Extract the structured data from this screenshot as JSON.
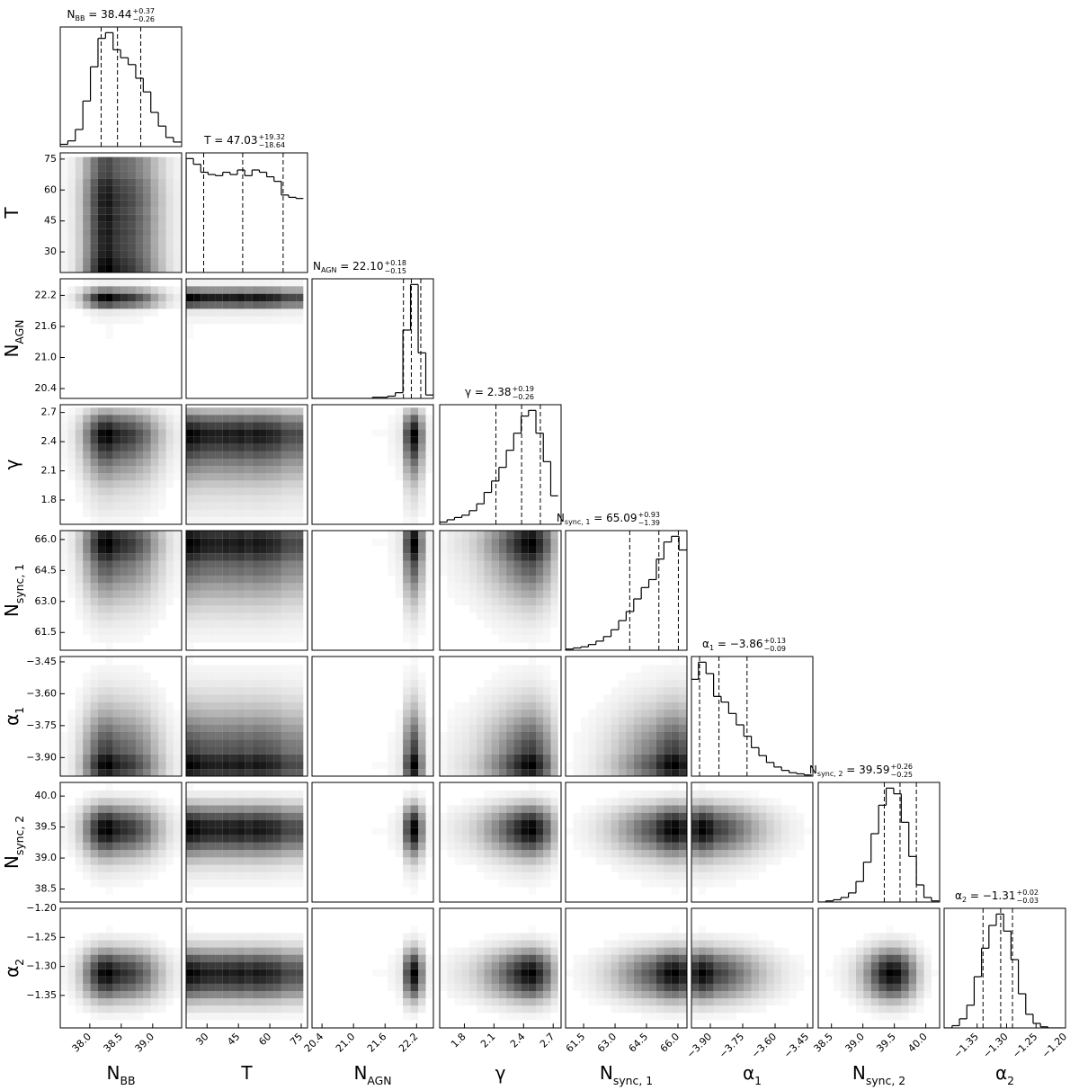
{
  "chart_data": {
    "type": "corner",
    "color": "#000000",
    "params": [
      {
        "name": "N",
        "name_sub": "BB",
        "title_value": " = 38.44",
        "plus": "+0.37",
        "minus": "−0.26",
        "lim": [
          37.53,
          39.46
        ],
        "ticks": [
          {
            "value": 38.0,
            "label": "38.0"
          },
          38.5,
          {
            "value": 39.0,
            "label": "39.0"
          }
        ],
        "quantiles": [
          38.18,
          38.44,
          38.81
        ],
        "hist": {
          "bins": [
            37.53,
            37.65,
            37.77,
            37.89,
            38.01,
            38.13,
            38.25,
            38.37,
            38.49,
            38.61,
            38.73,
            38.85,
            38.97,
            39.09,
            39.21,
            39.33,
            39.45
          ],
          "counts": [
            2,
            5,
            15,
            40,
            70,
            95,
            100,
            85,
            78,
            72,
            60,
            48,
            30,
            18,
            8,
            4
          ]
        }
      },
      {
        "name": "T",
        "name_sub": "",
        "title_value": " = 47.03",
        "plus": "+19.32",
        "minus": "−18.64",
        "lim": [
          20,
          78
        ],
        "ticks": [
          30,
          45,
          60,
          75
        ],
        "quantiles": [
          28.39,
          47.03,
          66.35
        ],
        "hist": {
          "bins": [
            20,
            23.5,
            27,
            30.5,
            34,
            37.5,
            41,
            44.5,
            48,
            51.5,
            55,
            58.5,
            62,
            65.5,
            69,
            72.5,
            76
          ],
          "counts": [
            100,
            95,
            88,
            86,
            85,
            88,
            86,
            90,
            85,
            90,
            88,
            84,
            80,
            68,
            66,
            65
          ]
        }
      },
      {
        "name": "N",
        "name_sub": "AGN",
        "title_value": " = 22.10",
        "plus": "+0.18",
        "minus": "−0.15",
        "lim": [
          20.21,
          22.52
        ],
        "ticks": [
          20.4,
          {
            "value": 21.0,
            "label": "21.0"
          },
          21.6,
          22.2
        ],
        "quantiles": [
          21.95,
          22.1,
          22.28
        ],
        "hist": {
          "bins": [
            20.2,
            20.345,
            20.49,
            20.635,
            20.78,
            20.925,
            21.07,
            21.215,
            21.36,
            21.505,
            21.65,
            21.795,
            21.94,
            22.085,
            22.23,
            22.375,
            22.52
          ],
          "counts": [
            0,
            0,
            0,
            0,
            0,
            0,
            0,
            0,
            1,
            1,
            2,
            5,
            60,
            100,
            40,
            3
          ]
        }
      },
      {
        "name": "γ",
        "name_sub": "",
        "title_value": " = 2.38",
        "plus": "+0.19",
        "minus": "−0.26",
        "lim": [
          1.55,
          2.78
        ],
        "ticks": [
          1.8,
          2.1,
          2.4,
          2.7
        ],
        "quantiles": [
          2.12,
          2.38,
          2.57
        ],
        "hist": {
          "bins": [
            1.55,
            1.625,
            1.7,
            1.775,
            1.85,
            1.925,
            2.0,
            2.075,
            2.15,
            2.225,
            2.3,
            2.375,
            2.45,
            2.525,
            2.6,
            2.675,
            2.75
          ],
          "counts": [
            2,
            4,
            6,
            8,
            12,
            18,
            28,
            38,
            50,
            65,
            80,
            95,
            100,
            80,
            55,
            25
          ]
        }
      },
      {
        "name": "N",
        "name_sub": "sync, 1",
        "title_value": " = 65.09",
        "plus": "+0.93",
        "minus": "−1.39",
        "lim": [
          60.64,
          66.43
        ],
        "ticks": [
          61.5,
          {
            "value": 63.0,
            "label": "63.0"
          },
          64.5,
          {
            "value": 66.0,
            "label": "66.0"
          }
        ],
        "quantiles": [
          63.7,
          65.09,
          66.02
        ],
        "hist": {
          "bins": [
            60.65,
            61.01,
            61.37,
            61.73,
            62.09,
            62.45,
            62.81,
            63.17,
            63.53,
            63.89,
            64.25,
            64.61,
            64.97,
            65.33,
            65.69,
            66.05,
            66.41
          ],
          "counts": [
            1,
            2,
            3,
            5,
            8,
            12,
            18,
            26,
            34,
            45,
            55,
            62,
            80,
            95,
            100,
            88
          ]
        }
      },
      {
        "name": "α",
        "name_sub": "1",
        "title_value": " = −3.86",
        "plus": "+0.13",
        "minus": "−0.09",
        "lim": [
          -3.9875,
          -3.425
        ],
        "ticks": [
          {
            "value": -3.9,
            "label": "−3.90"
          },
          {
            "value": -3.75,
            "label": "−3.75"
          },
          {
            "value": -3.6,
            "label": "−3.60"
          },
          {
            "value": -3.45,
            "label": "−3.45"
          }
        ],
        "quantiles": [
          -3.95,
          -3.86,
          -3.73
        ],
        "hist": {
          "bins": [
            -3.99,
            -3.955,
            -3.92,
            -3.885,
            -3.85,
            -3.815,
            -3.78,
            -3.745,
            -3.71,
            -3.675,
            -3.64,
            -3.605,
            -3.57,
            -3.535,
            -3.5,
            -3.465,
            -3.43
          ],
          "counts": [
            85,
            100,
            90,
            70,
            65,
            55,
            45,
            35,
            25,
            18,
            12,
            8,
            5,
            3,
            2,
            1
          ]
        }
      },
      {
        "name": "N",
        "name_sub": "sync, 2",
        "title_value": " = 39.59",
        "plus": "+0.26",
        "minus": "−0.25",
        "lim": [
          38.29,
          40.22
        ],
        "ticks": [
          38.5,
          {
            "value": 39.0,
            "label": "39.0"
          },
          39.5,
          {
            "value": 40.0,
            "label": "40.0"
          }
        ],
        "quantiles": [
          39.34,
          39.59,
          39.85
        ],
        "hist": {
          "bins": [
            38.29,
            38.41,
            38.53,
            38.65,
            38.77,
            38.89,
            39.01,
            39.13,
            39.25,
            39.37,
            39.49,
            39.61,
            39.73,
            39.85,
            39.97,
            40.09,
            40.21
          ],
          "counts": [
            0,
            1,
            2,
            4,
            8,
            18,
            35,
            60,
            85,
            100,
            95,
            70,
            40,
            15,
            4,
            1
          ]
        }
      },
      {
        "name": "α",
        "name_sub": "2",
        "title_value": " = −1.31",
        "plus": "+0.02",
        "minus": "−0.03",
        "lim": [
          -1.406,
          -1.2
        ],
        "ticks": [
          {
            "value": -1.35,
            "label": "−1.35"
          },
          {
            "value": -1.3,
            "label": "−1.30"
          },
          {
            "value": -1.25,
            "label": "−1.25"
          },
          {
            "value": -1.2,
            "label": "−1.20"
          }
        ],
        "quantiles": [
          -1.34,
          -1.31,
          -1.29
        ],
        "hist": {
          "bins": [
            -1.405,
            -1.3925,
            -1.38,
            -1.3675,
            -1.355,
            -1.3425,
            -1.33,
            -1.3175,
            -1.305,
            -1.2925,
            -1.28,
            -1.2675,
            -1.255,
            -1.2425,
            -1.23,
            -1.2175,
            -1.205
          ],
          "counts": [
            0,
            2,
            8,
            20,
            45,
            70,
            90,
            100,
            85,
            60,
            30,
            12,
            4,
            1,
            0,
            0
          ]
        }
      }
    ]
  }
}
